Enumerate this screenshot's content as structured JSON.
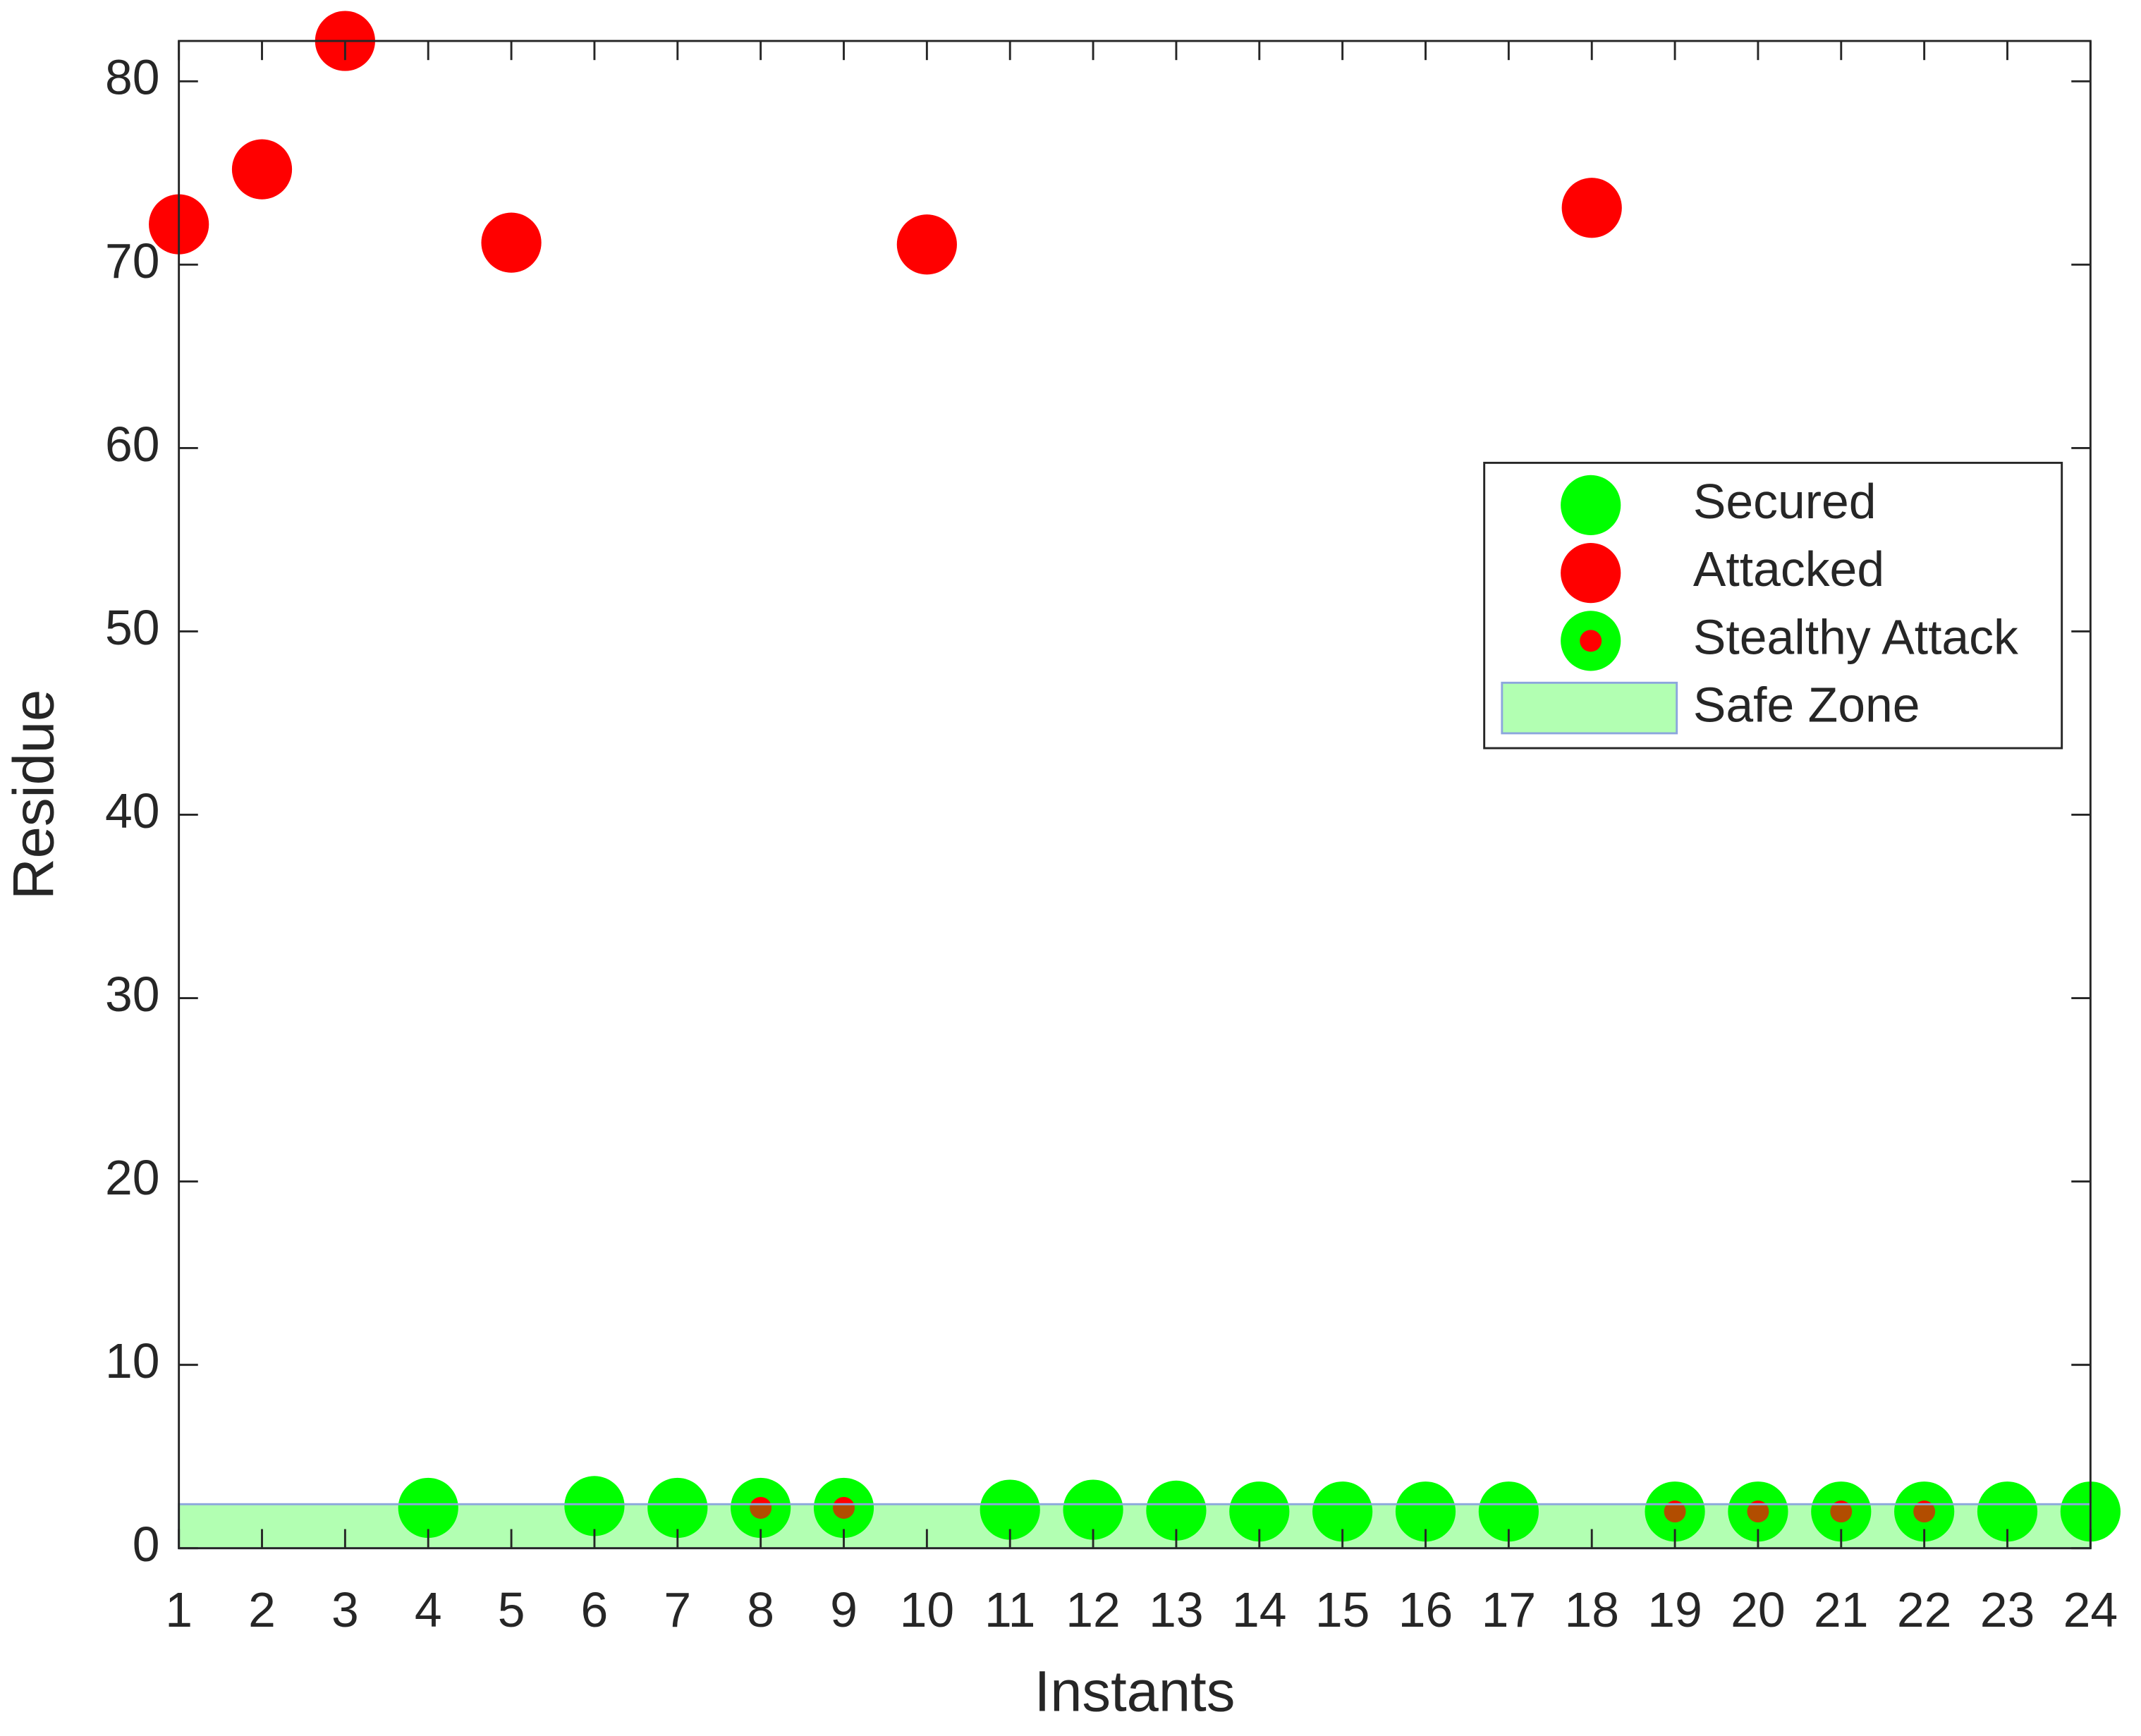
{
  "chart_data": {
    "type": "scatter",
    "x_label": "Instants",
    "y_label": "Residue",
    "xlim": [
      1,
      24
    ],
    "ylim": [
      0,
      82.2
    ],
    "xticks": [
      1,
      2,
      3,
      4,
      5,
      6,
      7,
      8,
      9,
      10,
      11,
      12,
      13,
      14,
      15,
      16,
      17,
      18,
      19,
      20,
      21,
      22,
      23,
      24
    ],
    "yticks": [
      0,
      10,
      20,
      30,
      40,
      50,
      60,
      70,
      80
    ],
    "legend": "east",
    "series": [
      {
        "name": "Secured",
        "color": "#00ff00",
        "x": [
          4,
          6,
          7,
          11,
          12,
          13,
          14,
          15,
          16,
          17,
          23,
          24
        ],
        "values": [
          2.2,
          2.3,
          2.2,
          2.1,
          2.1,
          2.05,
          2.0,
          2.0,
          2.0,
          2.0,
          2.0,
          2.0
        ]
      },
      {
        "name": "Attacked",
        "color": "#ff0000",
        "x": [
          1,
          2,
          3,
          5,
          10,
          18
        ],
        "values": [
          72.2,
          75.2,
          82.2,
          71.2,
          71.1,
          73.1
        ]
      },
      {
        "name": "Stealthy Attack",
        "color": "#00ff00",
        "inner_color": "#ff0000",
        "x": [
          8,
          9,
          19,
          20,
          21,
          22
        ],
        "values": [
          2.2,
          2.2,
          2.0,
          2.0,
          2.0,
          2.0
        ]
      }
    ],
    "safe_zone": {
      "name": "Safe Zone",
      "ymin": 0,
      "ymax": 2.4,
      "color": "#00ff00",
      "opacity": 0.3,
      "edge_color": "#8ca6dd"
    }
  }
}
